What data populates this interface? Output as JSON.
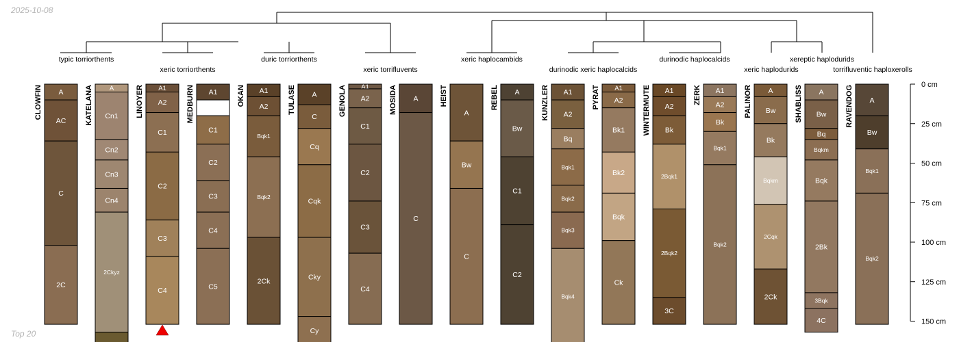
{
  "header": {
    "date": "2025-10-08"
  },
  "footer": {
    "note": "Top 20"
  },
  "depth_axis": {
    "ticks": [
      "0 cm",
      "25 cm",
      "50 cm",
      "75 cm",
      "100 cm",
      "125 cm",
      "150 cm"
    ]
  },
  "groups": [
    {
      "id": "g1",
      "label": "typic torriorthents"
    },
    {
      "id": "g2",
      "label": "xeric torriorthents"
    },
    {
      "id": "g3",
      "label": "duric torriorthents"
    },
    {
      "id": "g4",
      "label": "xeric torrifluvents"
    },
    {
      "id": "g5",
      "label": "xeric haplocambids"
    },
    {
      "id": "g6",
      "label": "durinodic xeric haplocalcids"
    },
    {
      "id": "g7",
      "label": "durinodic haplocalcids"
    },
    {
      "id": "g8",
      "label": "xeric haplodurids"
    },
    {
      "id": "g9",
      "label": "xereptic haplodurids"
    },
    {
      "id": "g10",
      "label": "torrifluventic haploxerolls"
    }
  ],
  "profiles": [
    {
      "name": "CLOWFIN",
      "horizons": [
        {
          "name": "A",
          "top": 0,
          "bottom": 10,
          "color": "#7a5c3e"
        },
        {
          "name": "AC",
          "top": 10,
          "bottom": 36,
          "color": "#6f5238"
        },
        {
          "name": "C",
          "top": 36,
          "bottom": 102,
          "color": "#6e553b"
        },
        {
          "name": "2C",
          "top": 102,
          "bottom": 152,
          "color": "#8a6d52"
        }
      ]
    },
    {
      "name": "KATELANA",
      "horizons": [
        {
          "name": "A",
          "top": 0,
          "bottom": 5,
          "color": "#b0977c"
        },
        {
          "name": "Cn1",
          "top": 5,
          "bottom": 35,
          "color": "#9d8470"
        },
        {
          "name": "Cn2",
          "top": 35,
          "bottom": 48,
          "color": "#a08874"
        },
        {
          "name": "Cn3",
          "top": 48,
          "bottom": 66,
          "color": "#9e8771"
        },
        {
          "name": "Cn4",
          "top": 66,
          "bottom": 81,
          "color": "#9c846d"
        },
        {
          "name": "2Ckyz",
          "top": 81,
          "bottom": 157,
          "color": "#a09078"
        },
        {
          "name": "",
          "top": 157,
          "bottom": 175,
          "color": "#6a5a30"
        }
      ]
    },
    {
      "name": "LINOYER",
      "horizons": [
        {
          "name": "A1",
          "top": 0,
          "bottom": 5,
          "color": "#6a4f38"
        },
        {
          "name": "A2",
          "top": 5,
          "bottom": 18,
          "color": "#806248"
        },
        {
          "name": "C1",
          "top": 18,
          "bottom": 43,
          "color": "#8c6f52"
        },
        {
          "name": "C2",
          "top": 43,
          "bottom": 86,
          "color": "#8b6b45"
        },
        {
          "name": "C3",
          "top": 86,
          "bottom": 109,
          "color": "#a0815a"
        },
        {
          "name": "C4",
          "top": 109,
          "bottom": 152,
          "color": "#a8875c"
        }
      ],
      "marker": "triangle"
    },
    {
      "name": "MEDBURN",
      "horizons": [
        {
          "name": "A1",
          "top": 0,
          "bottom": 10,
          "color": "#5e4630"
        },
        {
          "name": "",
          "top": 10,
          "bottom": 20,
          "color": "#ffffff"
        },
        {
          "name": "C1",
          "top": 20,
          "bottom": 38,
          "color": "#8e6d48"
        },
        {
          "name": "C2",
          "top": 38,
          "bottom": 61,
          "color": "#8b6f55"
        },
        {
          "name": "C3",
          "top": 61,
          "bottom": 81,
          "color": "#8a6e53"
        },
        {
          "name": "C4",
          "top": 81,
          "bottom": 104,
          "color": "#8b6f55"
        },
        {
          "name": "C5",
          "top": 104,
          "bottom": 152,
          "color": "#8b6f55"
        }
      ]
    },
    {
      "name": "OKAN",
      "horizons": [
        {
          "name": "A1",
          "top": 0,
          "bottom": 8,
          "color": "#5a4128"
        },
        {
          "name": "A2",
          "top": 8,
          "bottom": 20,
          "color": "#6d5034"
        },
        {
          "name": "Bqk1",
          "top": 20,
          "bottom": 46,
          "color": "#7a5c3c"
        },
        {
          "name": "Bqk2",
          "top": 46,
          "bottom": 97,
          "color": "#8c6f52"
        },
        {
          "name": "2Ck",
          "top": 97,
          "bottom": 152,
          "color": "#6a5136"
        }
      ]
    },
    {
      "name": "TULASE",
      "horizons": [
        {
          "name": "A",
          "top": 0,
          "bottom": 13,
          "color": "#5a4128"
        },
        {
          "name": "C",
          "top": 13,
          "bottom": 28,
          "color": "#7a5c3c"
        },
        {
          "name": "Cq",
          "top": 28,
          "bottom": 51,
          "color": "#9a7850"
        },
        {
          "name": "Cqk",
          "top": 51,
          "bottom": 97,
          "color": "#8c6c46"
        },
        {
          "name": "Cky",
          "top": 97,
          "bottom": 147,
          "color": "#8e704d"
        },
        {
          "name": "Cy",
          "top": 147,
          "bottom": 175,
          "color": "#8e7050"
        }
      ]
    },
    {
      "name": "GENOLA",
      "horizons": [
        {
          "name": "A1",
          "top": 0,
          "bottom": 3,
          "color": "#6e5845"
        },
        {
          "name": "A2",
          "top": 3,
          "bottom": 15,
          "color": "#7a634c"
        },
        {
          "name": "C1",
          "top": 15,
          "bottom": 38,
          "color": "#6e5a44"
        },
        {
          "name": "C2",
          "top": 38,
          "bottom": 74,
          "color": "#6c5641"
        },
        {
          "name": "C3",
          "top": 74,
          "bottom": 107,
          "color": "#6a533a"
        },
        {
          "name": "C4",
          "top": 107,
          "bottom": 152,
          "color": "#866c52"
        }
      ]
    },
    {
      "name": "MOSIDA",
      "horizons": [
        {
          "name": "A",
          "top": 0,
          "bottom": 18,
          "color": "#5a4636"
        },
        {
          "name": "C",
          "top": 18,
          "bottom": 152,
          "color": "#6c5846"
        }
      ]
    },
    {
      "name": "HEIST",
      "horizons": [
        {
          "name": "A",
          "top": 0,
          "bottom": 36,
          "color": "#6e5438"
        },
        {
          "name": "Bw",
          "top": 36,
          "bottom": 66,
          "color": "#957550"
        },
        {
          "name": "C",
          "top": 66,
          "bottom": 152,
          "color": "#8c6e50"
        }
      ]
    },
    {
      "name": "REBEL",
      "horizons": [
        {
          "name": "A",
          "top": 0,
          "bottom": 10,
          "color": "#4e4233"
        },
        {
          "name": "Bw",
          "top": 10,
          "bottom": 46,
          "color": "#6a5a48"
        },
        {
          "name": "C1",
          "top": 46,
          "bottom": 89,
          "color": "#4e4232"
        },
        {
          "name": "C2",
          "top": 89,
          "bottom": 152,
          "color": "#4e4232"
        }
      ]
    },
    {
      "name": "KUNZLER",
      "horizons": [
        {
          "name": "A1",
          "top": 0,
          "bottom": 10,
          "color": "#6c5236"
        },
        {
          "name": "A2",
          "top": 10,
          "bottom": 28,
          "color": "#7a603f"
        },
        {
          "name": "Bq",
          "top": 28,
          "bottom": 41,
          "color": "#9a7e60"
        },
        {
          "name": "Bqk1",
          "top": 41,
          "bottom": 64,
          "color": "#8c6b48"
        },
        {
          "name": "Bqk2",
          "top": 64,
          "bottom": 81,
          "color": "#8a6b4a"
        },
        {
          "name": "Bqk3",
          "top": 81,
          "bottom": 104,
          "color": "#8a6a50"
        },
        {
          "name": "Bqk4",
          "top": 104,
          "bottom": 175,
          "color": "#a68d70"
        }
      ]
    },
    {
      "name": "PYRAT",
      "horizons": [
        {
          "name": "A1",
          "top": 0,
          "bottom": 5,
          "color": "#7a5a3a"
        },
        {
          "name": "A2",
          "top": 5,
          "bottom": 15,
          "color": "#8a6a48"
        },
        {
          "name": "Bk1",
          "top": 15,
          "bottom": 43,
          "color": "#957a60"
        },
        {
          "name": "Bk2",
          "top": 43,
          "bottom": 69,
          "color": "#c8a888"
        },
        {
          "name": "Bqk",
          "top": 69,
          "bottom": 99,
          "color": "#c2a584"
        },
        {
          "name": "Ck",
          "top": 99,
          "bottom": 152,
          "color": "#927758"
        }
      ]
    },
    {
      "name": "WINTERMUTE",
      "horizons": [
        {
          "name": "A1",
          "top": 0,
          "bottom": 8,
          "color": "#694826"
        },
        {
          "name": "A2",
          "top": 8,
          "bottom": 20,
          "color": "#6f4d2c"
        },
        {
          "name": "Bk",
          "top": 20,
          "bottom": 38,
          "color": "#7d5c38"
        },
        {
          "name": "2Bqk1",
          "top": 38,
          "bottom": 79,
          "color": "#b0916a"
        },
        {
          "name": "2Bqk2",
          "top": 79,
          "bottom": 135,
          "color": "#7a5a34"
        },
        {
          "name": "3C",
          "top": 135,
          "bottom": 152,
          "color": "#6c4c2c"
        }
      ]
    },
    {
      "name": "ZERK",
      "horizons": [
        {
          "name": "A1",
          "top": 0,
          "bottom": 8,
          "color": "#8c7560"
        },
        {
          "name": "A2",
          "top": 8,
          "bottom": 18,
          "color": "#9a7a58"
        },
        {
          "name": "Bk",
          "top": 18,
          "bottom": 30,
          "color": "#9a7650"
        },
        {
          "name": "Bqk1",
          "top": 30,
          "bottom": 51,
          "color": "#957a60"
        },
        {
          "name": "Bqk2",
          "top": 51,
          "bottom": 152,
          "color": "#8c7258"
        }
      ]
    },
    {
      "name": "PALINOR",
      "horizons": [
        {
          "name": "A",
          "top": 0,
          "bottom": 8,
          "color": "#7a5a38"
        },
        {
          "name": "Bw",
          "top": 8,
          "bottom": 25,
          "color": "#8a6c4c"
        },
        {
          "name": "Bk",
          "top": 25,
          "bottom": 46,
          "color": "#957a5e"
        },
        {
          "name": "Bqkm",
          "top": 46,
          "bottom": 76,
          "color": "#d2c5b4"
        },
        {
          "name": "2Cqk",
          "top": 76,
          "bottom": 117,
          "color": "#ae9270"
        },
        {
          "name": "2Ck",
          "top": 117,
          "bottom": 152,
          "color": "#6e5234"
        }
      ]
    },
    {
      "name": "SHABLISS",
      "horizons": [
        {
          "name": "A",
          "top": 0,
          "bottom": 10,
          "color": "#8a7560"
        },
        {
          "name": "Bw",
          "top": 10,
          "bottom": 28,
          "color": "#7a6048"
        },
        {
          "name": "Bq",
          "top": 28,
          "bottom": 35,
          "color": "#7c5c3c"
        },
        {
          "name": "Bqkm",
          "top": 35,
          "bottom": 48,
          "color": "#8c6e52"
        },
        {
          "name": "Bqk",
          "top": 48,
          "bottom": 74,
          "color": "#957a60"
        },
        {
          "name": "2Bk",
          "top": 74,
          "bottom": 132,
          "color": "#927860"
        },
        {
          "name": "3Bqk",
          "top": 132,
          "bottom": 142,
          "color": "#8e7460"
        },
        {
          "name": "4C",
          "top": 142,
          "bottom": 157,
          "color": "#8c7260"
        }
      ]
    },
    {
      "name": "RAVENDOG",
      "horizons": [
        {
          "name": "A",
          "top": 0,
          "bottom": 20,
          "color": "#574737"
        },
        {
          "name": "Bw",
          "top": 20,
          "bottom": 41,
          "color": "#4e3e2c"
        },
        {
          "name": "Bqk1",
          "top": 41,
          "bottom": 69,
          "color": "#8a7058"
        },
        {
          "name": "Bqk2",
          "top": 69,
          "bottom": 152,
          "color": "#8a7058"
        }
      ]
    }
  ]
}
